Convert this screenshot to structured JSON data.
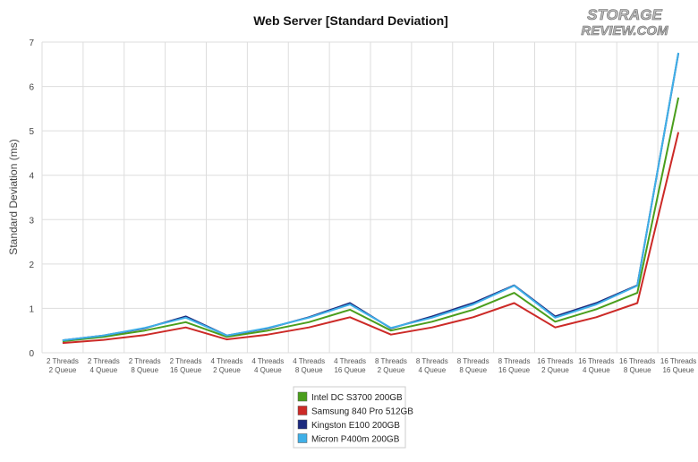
{
  "logo": {
    "line1": "STORAGE",
    "line2": "REVIEW.COM"
  },
  "chart_data": {
    "type": "line",
    "title": "Web Server [Standard Deviation]",
    "xlabel": "",
    "ylabel": "Standard Deviation (ms)",
    "ylim": [
      0,
      7
    ],
    "yticks": [
      0,
      1,
      2,
      3,
      4,
      5,
      6,
      7
    ],
    "grid": true,
    "legend_position": "bottom-center",
    "categories": [
      [
        "2 Threads",
        "2 Queue"
      ],
      [
        "2 Threads",
        "4 Queue"
      ],
      [
        "2 Threads",
        "8 Queue"
      ],
      [
        "2 Threads",
        "16 Queue"
      ],
      [
        "4 Threads",
        "2 Queue"
      ],
      [
        "4 Threads",
        "4 Queue"
      ],
      [
        "4 Threads",
        "8 Queue"
      ],
      [
        "4 Threads",
        "16 Queue"
      ],
      [
        "8 Threads",
        "2 Queue"
      ],
      [
        "8 Threads",
        "4 Queue"
      ],
      [
        "8 Threads",
        "8 Queue"
      ],
      [
        "8 Threads",
        "16 Queue"
      ],
      [
        "16 Threads",
        "2 Queue"
      ],
      [
        "16 Threads",
        "4 Queue"
      ],
      [
        "16 Threads",
        "8 Queue"
      ],
      [
        "16 Threads",
        "16 Queue"
      ]
    ],
    "series": [
      {
        "name": "Intel DC S3700 200GB",
        "color": "#4a9e1c",
        "values": [
          0.26,
          0.36,
          0.5,
          0.69,
          0.36,
          0.5,
          0.69,
          0.97,
          0.5,
          0.7,
          0.97,
          1.35,
          0.7,
          0.98,
          1.35,
          5.75
        ]
      },
      {
        "name": "Samsung 840 Pro 512GB",
        "color": "#cc2a27",
        "values": [
          0.22,
          0.29,
          0.4,
          0.57,
          0.3,
          0.41,
          0.57,
          0.8,
          0.41,
          0.57,
          0.8,
          1.12,
          0.57,
          0.8,
          1.12,
          4.97
        ]
      },
      {
        "name": "Kingston E100 200GB",
        "color": "#1c2a7e",
        "values": [
          0.28,
          0.39,
          0.55,
          0.82,
          0.39,
          0.55,
          0.8,
          1.12,
          0.55,
          0.82,
          1.12,
          1.52,
          0.82,
          1.12,
          1.52,
          6.75
        ]
      },
      {
        "name": "Micron P400m 200GB",
        "color": "#3fb0e8",
        "values": [
          0.28,
          0.39,
          0.56,
          0.79,
          0.39,
          0.56,
          0.79,
          1.09,
          0.56,
          0.79,
          1.09,
          1.51,
          0.79,
          1.09,
          1.51,
          6.76
        ]
      }
    ]
  }
}
